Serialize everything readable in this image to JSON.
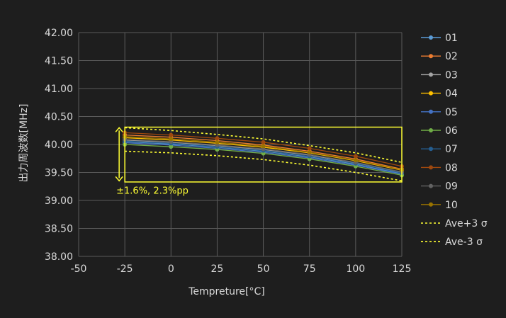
{
  "chart_data": {
    "type": "line",
    "title": "",
    "xlabel": "Tempreture[°C]",
    "ylabel": "出力周波数[MHz]",
    "xlim": [
      -50,
      125
    ],
    "ylim": [
      38.0,
      42.0
    ],
    "x_ticks": [
      "-50",
      "-25",
      "0",
      "25",
      "50",
      "75",
      "100",
      "125"
    ],
    "y_ticks": [
      "38.00",
      "38.50",
      "39.00",
      "39.50",
      "40.00",
      "40.50",
      "41.00",
      "41.50",
      "42.00"
    ],
    "grid": true,
    "legend_position": "right",
    "x": [
      -25,
      0,
      25,
      50,
      75,
      100,
      125
    ],
    "series": [
      {
        "name": "01",
        "color": "#5b9bd5",
        "values": [
          40.05,
          40.01,
          39.95,
          39.88,
          39.78,
          39.65,
          39.48
        ]
      },
      {
        "name": "02",
        "color": "#ed7d31",
        "values": [
          40.17,
          40.13,
          40.07,
          39.99,
          39.88,
          39.74,
          39.56
        ]
      },
      {
        "name": "03",
        "color": "#a5a5a5",
        "values": [
          40.08,
          40.04,
          39.98,
          39.91,
          39.81,
          39.67,
          39.5
        ]
      },
      {
        "name": "04",
        "color": "#ffc000",
        "values": [
          40.12,
          40.08,
          40.02,
          39.95,
          39.85,
          39.71,
          39.54
        ]
      },
      {
        "name": "05",
        "color": "#4472c4",
        "values": [
          40.03,
          39.99,
          39.93,
          39.86,
          39.76,
          39.63,
          39.47
        ]
      },
      {
        "name": "06",
        "color": "#70ad47",
        "values": [
          40.0,
          39.96,
          39.91,
          39.84,
          39.74,
          39.61,
          39.45
        ]
      },
      {
        "name": "07",
        "color": "#255e91",
        "values": [
          40.06,
          40.02,
          39.96,
          39.89,
          39.79,
          39.66,
          39.49
        ]
      },
      {
        "name": "08",
        "color": "#9e480e",
        "values": [
          40.21,
          40.17,
          40.11,
          40.04,
          39.93,
          39.79,
          39.61
        ]
      },
      {
        "name": "09",
        "color": "#636363",
        "values": [
          40.09,
          40.05,
          39.99,
          39.92,
          39.82,
          39.68,
          39.51
        ]
      },
      {
        "name": "10",
        "color": "#997300",
        "values": [
          40.14,
          40.1,
          40.04,
          39.97,
          39.86,
          39.72,
          39.55
        ]
      },
      {
        "name": "Ave+3 σ",
        "color": "#ffff33",
        "dashed": true,
        "values": [
          40.3,
          40.25,
          40.18,
          40.1,
          39.98,
          39.85,
          39.68
        ]
      },
      {
        "name": "Ave-3 σ",
        "color": "#ffff33",
        "dashed": true,
        "values": [
          39.88,
          39.85,
          39.8,
          39.73,
          39.63,
          39.5,
          39.35
        ]
      }
    ],
    "annotation": {
      "text": "±1.6%, 2.3%pp",
      "box_x": [
        -25,
        125
      ],
      "box_y": [
        39.33,
        40.31
      ],
      "arrow_y": [
        39.35,
        40.3
      ],
      "color": "#ffff33"
    }
  }
}
